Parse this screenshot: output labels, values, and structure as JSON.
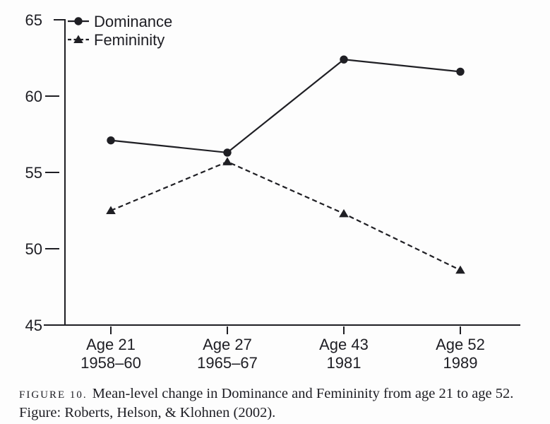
{
  "chart_data": {
    "type": "line",
    "title": "",
    "xlabel": "",
    "ylabel": "",
    "grid": false,
    "legend_position": "top-left",
    "ylim": [
      45,
      65
    ],
    "y_ticks": [
      65,
      60,
      55,
      50,
      45
    ],
    "x_categories": [
      {
        "line1": "Age 21",
        "line2": "1958–60"
      },
      {
        "line1": "Age 27",
        "line2": "1965–67"
      },
      {
        "line1": "Age 43",
        "line2": "1981"
      },
      {
        "line1": "Age 52",
        "line2": "1989"
      }
    ],
    "series": [
      {
        "name": "Dominance",
        "values": [
          57.1,
          56.3,
          62.4,
          61.6
        ],
        "line_style": "solid",
        "marker": "circle"
      },
      {
        "name": "Femininity",
        "values": [
          52.5,
          55.7,
          52.3,
          48.6
        ],
        "line_style": "dashed",
        "marker": "triangle"
      }
    ],
    "ink_color": "#1f1f24",
    "background_color": "#fdfdfd"
  },
  "caption": {
    "figure_label": "FIGURE 10.",
    "line1_text": "Mean-level change in Dominance and Femininity from age 21 to age 52.",
    "line2_text": "Figure: Roberts, Helson, & Klohnen (2002)."
  }
}
